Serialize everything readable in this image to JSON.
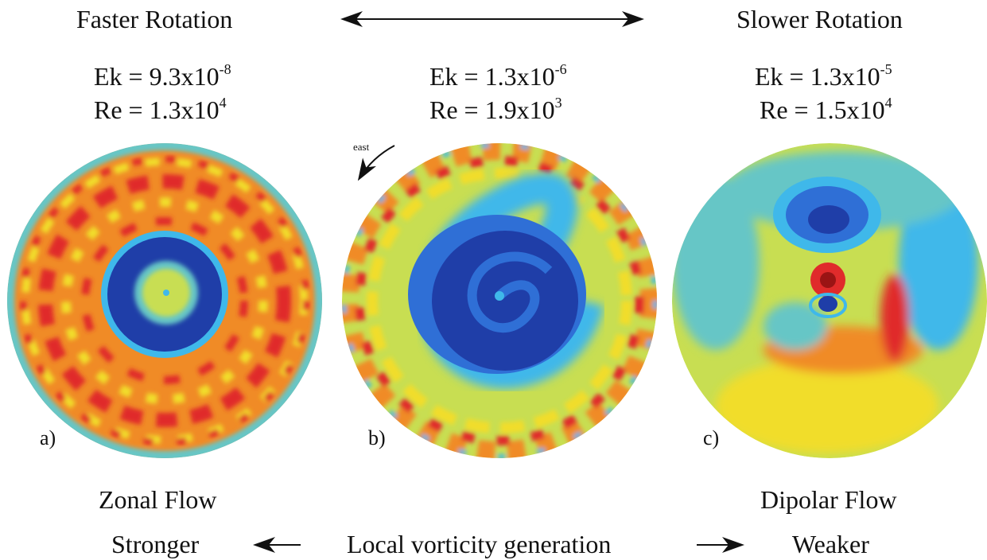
{
  "header": {
    "left": "Faster Rotation",
    "right": "Slower Rotation"
  },
  "panels": [
    {
      "label": "a)",
      "ek_base": "Ek = 9.3x10",
      "ek_exp": "-8",
      "re_base": "Re = 1.3x10",
      "re_exp": "4"
    },
    {
      "label": "b)",
      "ek_base": "Ek = 1.3x10",
      "ek_exp": "-6",
      "re_base": "Re = 1.9x10",
      "re_exp": "3"
    },
    {
      "label": "c)",
      "ek_base": "Ek = 1.3x10",
      "ek_exp": "-5",
      "re_base": "Re = 1.5x10",
      "re_exp": "4"
    }
  ],
  "annotation": {
    "east": "east"
  },
  "footer": {
    "left_flow": "Zonal Flow",
    "right_flow": "Dipolar Flow",
    "left_strength": "Stronger",
    "middle": "Local vorticity generation",
    "right_strength": "Weaker"
  },
  "colors": {
    "deep_blue": "#1f3ea8",
    "blue": "#2f6fd6",
    "cyan": "#3fb8ea",
    "teal": "#66c6c6",
    "green_yellow": "#c8de52",
    "yellow": "#f1dd2c",
    "orange": "#f08b26",
    "red": "#e02b2b",
    "dark_red": "#9a1414"
  }
}
